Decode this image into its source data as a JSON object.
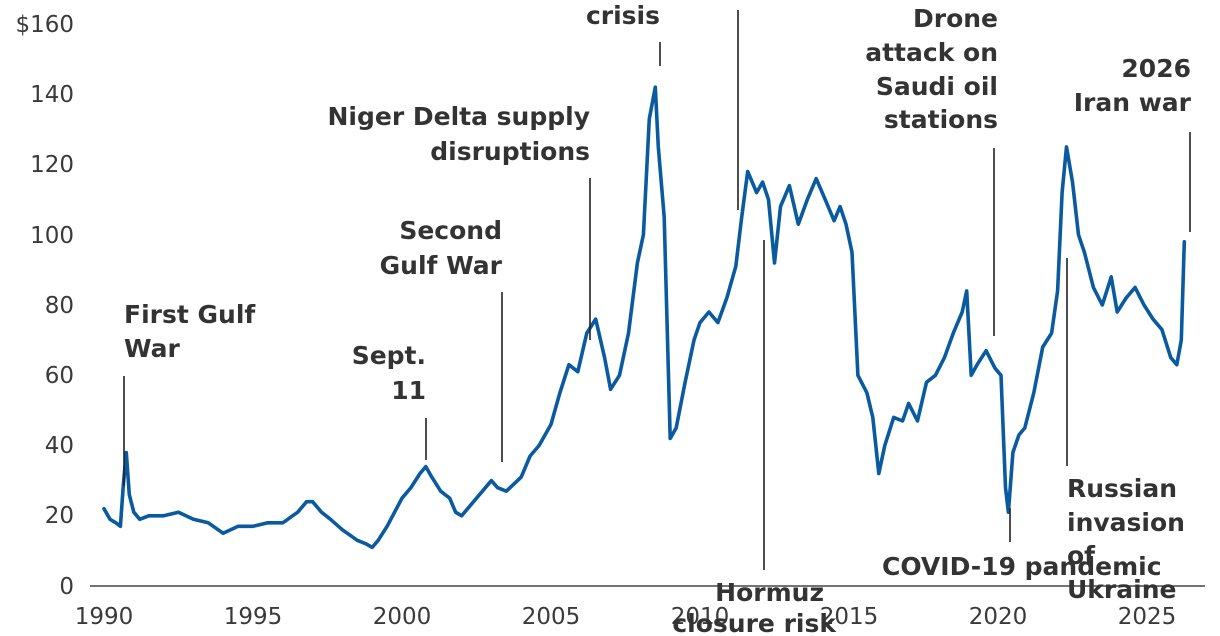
{
  "colors": {
    "line": "#0a5aa0",
    "text": "#333333",
    "axis": "#222222"
  },
  "chart_data": {
    "type": "line",
    "title": "",
    "xlabel": "",
    "ylabel": "",
    "grid": false,
    "xlim": [
      1989.6,
      2026.9
    ],
    "ylim": [
      0,
      160
    ],
    "y_ticks": [
      {
        "value": 0,
        "label": "0"
      },
      {
        "value": 20,
        "label": "20"
      },
      {
        "value": 40,
        "label": "40"
      },
      {
        "value": 60,
        "label": "60"
      },
      {
        "value": 80,
        "label": "80"
      },
      {
        "value": 100,
        "label": "100"
      },
      {
        "value": 120,
        "label": "120"
      },
      {
        "value": 140,
        "label": "140"
      },
      {
        "value": 160,
        "label": "$160"
      }
    ],
    "x_ticks": [
      {
        "value": 1990,
        "label": "1990"
      },
      {
        "value": 1995,
        "label": "1995"
      },
      {
        "value": 2000,
        "label": "2000"
      },
      {
        "value": 2005,
        "label": "2005"
      },
      {
        "value": 2010,
        "label": "2010"
      },
      {
        "value": 2015,
        "label": "2015"
      },
      {
        "value": 2020,
        "label": "2020"
      },
      {
        "value": 2025,
        "label": "2025"
      }
    ],
    "series": [
      {
        "x": [
          1990.0,
          1990.2,
          1990.4,
          1990.55,
          1990.65,
          1990.75,
          1990.85,
          1991.0,
          1991.2,
          1991.5,
          1992.0,
          1992.5,
          1993.0,
          1993.5,
          1994.0,
          1994.5,
          1995.0,
          1995.5,
          1996.0,
          1996.5,
          1996.8,
          1997.0,
          1997.3,
          1997.6,
          1998.0,
          1998.5,
          1998.8,
          1999.0,
          1999.2,
          1999.5,
          2000.0,
          2000.3,
          2000.6,
          2000.8,
          2001.0,
          2001.3,
          2001.6,
          2001.8,
          2002.0,
          2002.5,
          2003.0,
          2003.2,
          2003.5,
          2004.0,
          2004.3,
          2004.6,
          2005.0,
          2005.3,
          2005.6,
          2005.9,
          2006.2,
          2006.5,
          2006.8,
          2007.0,
          2007.3,
          2007.6,
          2007.9,
          2008.1,
          2008.3,
          2008.5,
          2008.6,
          2008.8,
          2009.0,
          2009.2,
          2009.5,
          2009.8,
          2010.0,
          2010.3,
          2010.6,
          2010.9,
          2011.2,
          2011.4,
          2011.6,
          2011.9,
          2012.1,
          2012.3,
          2012.5,
          2012.7,
          2013.0,
          2013.3,
          2013.6,
          2013.9,
          2014.2,
          2014.5,
          2014.7,
          2014.9,
          2015.1,
          2015.3,
          2015.6,
          2015.8,
          2016.0,
          2016.2,
          2016.5,
          2016.8,
          2017.0,
          2017.3,
          2017.6,
          2017.9,
          2018.2,
          2018.5,
          2018.8,
          2018.95,
          2019.1,
          2019.3,
          2019.6,
          2019.9,
          2020.1,
          2020.25,
          2020.35,
          2020.5,
          2020.7,
          2020.9,
          2021.2,
          2021.5,
          2021.8,
          2022.0,
          2022.15,
          2022.3,
          2022.5,
          2022.7,
          2022.9,
          2023.2,
          2023.5,
          2023.8,
          2024.0,
          2024.3,
          2024.6,
          2024.9,
          2025.2,
          2025.5,
          2025.8,
          2026.0,
          2026.15,
          2026.25
        ],
        "values": [
          22,
          19,
          18,
          17,
          29,
          38,
          26,
          21,
          19,
          20,
          20,
          21,
          19,
          18,
          15,
          17,
          17,
          18,
          18,
          21,
          24,
          24,
          21,
          19,
          16,
          13,
          12,
          11,
          13,
          17,
          25,
          28,
          32,
          34,
          31,
          27,
          25,
          21,
          20,
          25,
          30,
          28,
          27,
          31,
          37,
          40,
          46,
          55,
          63,
          61,
          72,
          76,
          65,
          56,
          60,
          72,
          92,
          100,
          133,
          142,
          125,
          105,
          42,
          45,
          58,
          70,
          75,
          78,
          75,
          82,
          91,
          105,
          118,
          112,
          115,
          110,
          92,
          108,
          114,
          103,
          110,
          116,
          110,
          104,
          108,
          103,
          95,
          60,
          55,
          48,
          32,
          40,
          48,
          47,
          52,
          47,
          58,
          60,
          65,
          72,
          78,
          84,
          60,
          63,
          67,
          62,
          60,
          28,
          21,
          38,
          43,
          45,
          55,
          68,
          72,
          84,
          112,
          125,
          115,
          100,
          95,
          85,
          80,
          88,
          78,
          82,
          85,
          80,
          76,
          73,
          65,
          63,
          70,
          98
        ]
      }
    ],
    "annotations": [
      {
        "lines": [
          "First Gulf",
          "War"
        ],
        "x": 1990.7,
        "y": 28
      },
      {
        "lines": [
          "Sept.",
          "11"
        ],
        "x": 2000.9,
        "y": 36
      },
      {
        "lines": [
          "Second",
          "Gulf War"
        ],
        "x": 2003.3,
        "y": 35
      },
      {
        "lines": [
          "Niger Delta supply",
          "disruptions"
        ],
        "x": 2006.2,
        "y": 70
      },
      {
        "lines": [
          "crisis"
        ],
        "x": 2008.4,
        "y": 148
      },
      {
        "lines": [
          "Hormuz",
          "closure risk"
        ],
        "x": 2012.2,
        "y": 100
      },
      {
        "lines": [
          "Drone",
          "attack on",
          "Saudi oil",
          "stations"
        ],
        "x": 2019.3,
        "y": 70
      },
      {
        "lines": [
          "COVID-19 pandemic"
        ],
        "x": 2020.35,
        "y": 22
      },
      {
        "lines": [
          "Russian",
          "invasion",
          "of",
          "Ukraine"
        ],
        "x": 2022.15,
        "y": 118
      },
      {
        "lines": [
          "2026",
          "Iran war"
        ],
        "x": 2026.25,
        "y": 100
      }
    ]
  }
}
